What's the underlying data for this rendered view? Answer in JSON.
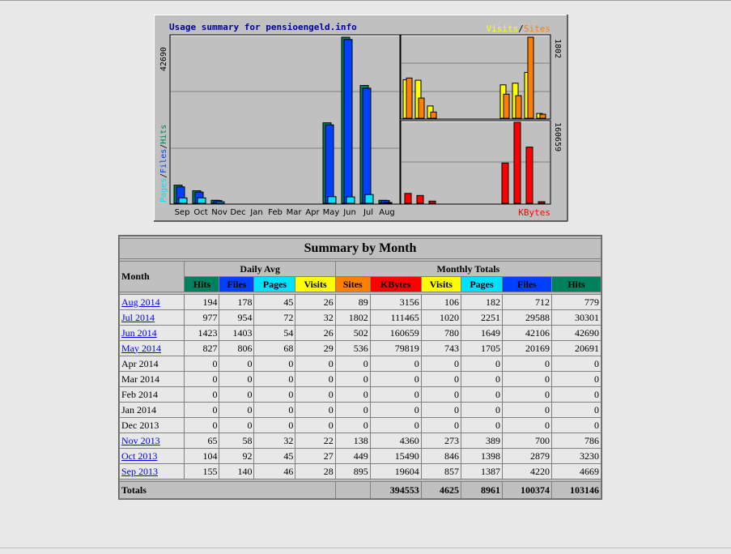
{
  "chart_data": {
    "title": "Usage summary for pensioengeld.info",
    "months": [
      "Sep",
      "Oct",
      "Nov",
      "Dec",
      "Jan",
      "Feb",
      "Mar",
      "Apr",
      "May",
      "Jun",
      "Jul",
      "Aug"
    ],
    "left_axis_max_label": "42690",
    "left_legend": {
      "pages": "Pages",
      "files": "Files",
      "hits": "Hits"
    },
    "right_top_max_label": "1802",
    "right_top_legend": {
      "visits": "Visits",
      "sites": "Sites"
    },
    "right_bottom_max_label": "160659",
    "right_bottom_legend": "KBytes",
    "colors": {
      "hits": "#00805c",
      "files": "#0040ff",
      "pages": "#00e0ff",
      "visits": "#ffff00",
      "sites": "#ff8000",
      "kbytes": "#ff0000",
      "title": "#0000a0"
    },
    "series": {
      "hits": [
        4669,
        3230,
        786,
        0,
        0,
        0,
        0,
        0,
        20691,
        42690,
        30301,
        779
      ],
      "files": [
        4220,
        2879,
        700,
        0,
        0,
        0,
        0,
        0,
        20169,
        42106,
        29588,
        712
      ],
      "pages": [
        1387,
        1398,
        389,
        0,
        0,
        0,
        0,
        0,
        1705,
        1649,
        2251,
        182
      ],
      "visits": [
        857,
        846,
        273,
        0,
        0,
        0,
        0,
        0,
        743,
        780,
        1020,
        106
      ],
      "sites": [
        895,
        449,
        138,
        0,
        0,
        0,
        0,
        0,
        536,
        502,
        1802,
        89
      ],
      "kbytes": [
        19604,
        15490,
        4360,
        0,
        0,
        0,
        0,
        0,
        79819,
        160659,
        111465,
        3156
      ]
    },
    "ylim_hits": [
      0,
      42690
    ],
    "ylim_visits": [
      0,
      1802
    ],
    "ylim_kbytes": [
      0,
      160659
    ]
  },
  "table": {
    "title": "Summary by Month",
    "month_header": "Month",
    "daily_avg": "Daily Avg",
    "monthly_totals": "Monthly Totals",
    "daily_cols": [
      "Hits",
      "Files",
      "Pages",
      "Visits"
    ],
    "monthly_cols": [
      "Sites",
      "KBytes",
      "Visits",
      "Pages",
      "Files",
      "Hits"
    ],
    "rows": [
      {
        "month": "Aug 2014",
        "link": true,
        "vals": [
          "194",
          "178",
          "45",
          "26",
          "89",
          "3156",
          "106",
          "182",
          "712",
          "779"
        ]
      },
      {
        "month": "Jul 2014",
        "link": true,
        "vals": [
          "977",
          "954",
          "72",
          "32",
          "1802",
          "111465",
          "1020",
          "2251",
          "29588",
          "30301"
        ]
      },
      {
        "month": "Jun 2014",
        "link": true,
        "vals": [
          "1423",
          "1403",
          "54",
          "26",
          "502",
          "160659",
          "780",
          "1649",
          "42106",
          "42690"
        ]
      },
      {
        "month": "May 2014",
        "link": true,
        "vals": [
          "827",
          "806",
          "68",
          "29",
          "536",
          "79819",
          "743",
          "1705",
          "20169",
          "20691"
        ]
      },
      {
        "month": "Apr 2014",
        "link": false,
        "vals": [
          "0",
          "0",
          "0",
          "0",
          "0",
          "0",
          "0",
          "0",
          "0",
          "0"
        ]
      },
      {
        "month": "Mar 2014",
        "link": false,
        "vals": [
          "0",
          "0",
          "0",
          "0",
          "0",
          "0",
          "0",
          "0",
          "0",
          "0"
        ]
      },
      {
        "month": "Feb 2014",
        "link": false,
        "vals": [
          "0",
          "0",
          "0",
          "0",
          "0",
          "0",
          "0",
          "0",
          "0",
          "0"
        ]
      },
      {
        "month": "Jan 2014",
        "link": false,
        "vals": [
          "0",
          "0",
          "0",
          "0",
          "0",
          "0",
          "0",
          "0",
          "0",
          "0"
        ]
      },
      {
        "month": "Dec 2013",
        "link": false,
        "vals": [
          "0",
          "0",
          "0",
          "0",
          "0",
          "0",
          "0",
          "0",
          "0",
          "0"
        ]
      },
      {
        "month": "Nov 2013",
        "link": true,
        "vals": [
          "65",
          "58",
          "32",
          "22",
          "138",
          "4360",
          "273",
          "389",
          "700",
          "786"
        ]
      },
      {
        "month": "Oct 2013",
        "link": true,
        "vals": [
          "104",
          "92",
          "45",
          "27",
          "449",
          "15490",
          "846",
          "1398",
          "2879",
          "3230"
        ]
      },
      {
        "month": "Sep 2013",
        "link": true,
        "vals": [
          "155",
          "140",
          "46",
          "28",
          "895",
          "19604",
          "857",
          "1387",
          "4220",
          "4669"
        ]
      }
    ],
    "totals_label": "Totals",
    "totals": [
      "394553",
      "4625",
      "8961",
      "100374",
      "103146"
    ]
  }
}
